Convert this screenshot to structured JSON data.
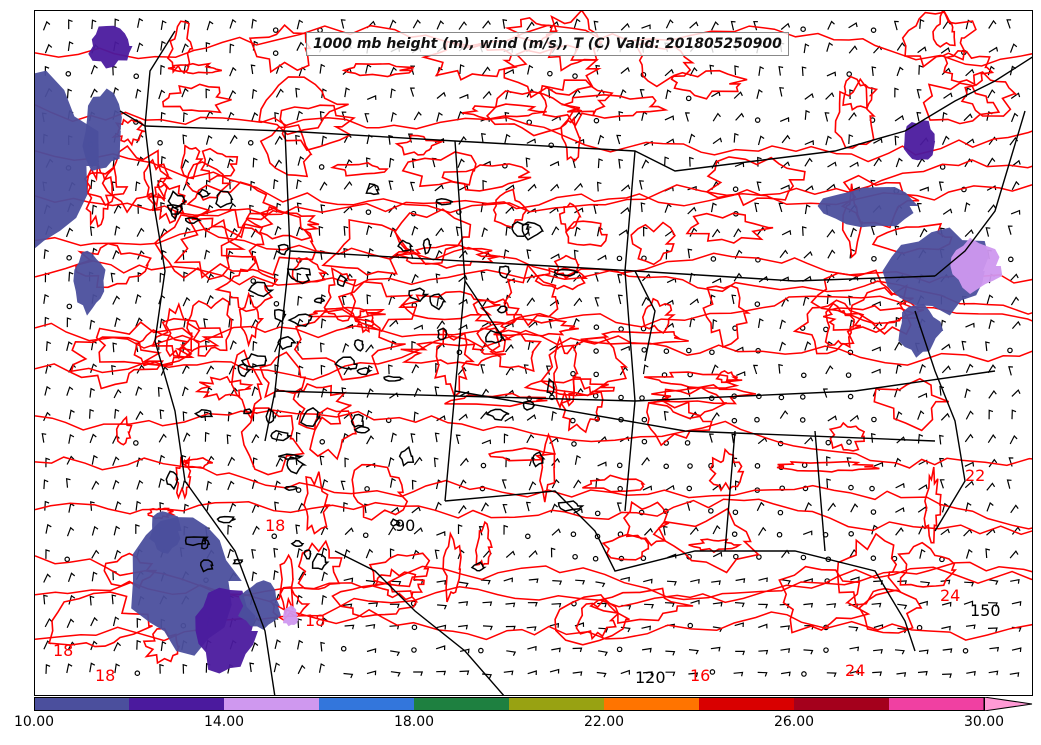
{
  "title": "1000 mb height (m), wind (m/s), T (C) Valid: 201805250900",
  "colors": {
    "temperature_contour": "#ff0000",
    "height_contour": "#000000",
    "map_lines": "#000000",
    "wind_barbs": "#000000"
  },
  "colorbar": {
    "bins": [
      "#4b4f9d",
      "#4b1a9e",
      "#cf98ef",
      "#3376dc",
      "#1e8040",
      "#98a212",
      "#ff7400",
      "#d90000",
      "#a4001c",
      "#f040a2"
    ],
    "extend_color": "#ff9ad5",
    "min": 10,
    "max": 30,
    "tick_labels": [
      "10.00",
      "14.00",
      "18.00",
      "22.00",
      "26.00",
      "30.00"
    ]
  },
  "contour_labels": {
    "temperature": [
      "18",
      "18",
      "16",
      "24",
      "22",
      "24",
      "18",
      "18"
    ],
    "height": [
      "120",
      "150",
      "90"
    ]
  }
}
